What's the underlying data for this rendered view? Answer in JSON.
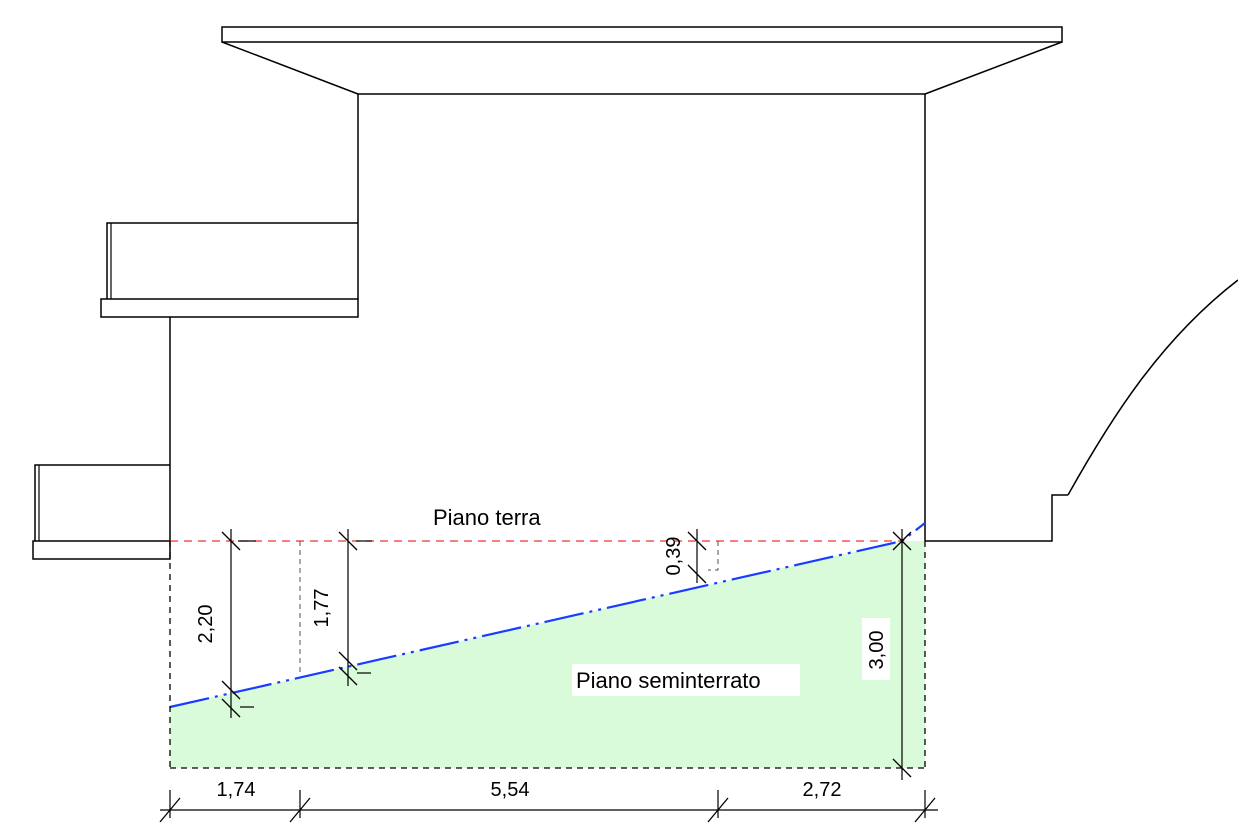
{
  "labels": {
    "ground_floor": "Piano terra",
    "basement_floor": "Piano seminterrato"
  },
  "dimensions": {
    "left_height": "2,20",
    "mid_height": "1,77",
    "right_small_height": "0,39",
    "right_height": "3,00",
    "bottom_left": "1,74",
    "bottom_mid": "5,54",
    "bottom_right": "2,72"
  },
  "colors": {
    "basement_fill": "#d9fbd9",
    "ground_line": "#ee3333",
    "terrain_line": "#1a3cff",
    "outline": "#000000"
  }
}
